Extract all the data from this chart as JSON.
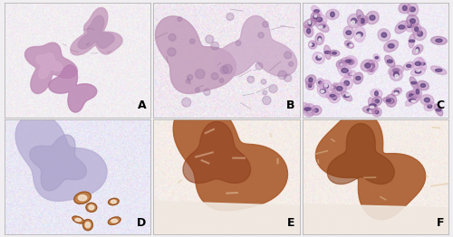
{
  "figsize": [
    5.0,
    2.62
  ],
  "dpi": 100,
  "nrows": 2,
  "ncols": 3,
  "labels": [
    "A",
    "B",
    "C",
    "D",
    "E",
    "F"
  ],
  "label_fontsize": 9,
  "label_color": "black",
  "border_color": "#aaaaaa",
  "border_linewidth": 0.5,
  "background_color": "#f0eef0",
  "bg_A": "#f2eef2",
  "bg_B": "#f0e8f0",
  "bg_C": "#f0ecf5",
  "bg_D": "#eae8f5",
  "bg_E": "#f5ede8",
  "bg_F": "#f5ede8",
  "tissue_A1": "#c8a0c0",
  "tissue_A2": "#c090b8",
  "tissue_A3": "#b880b0",
  "tissue_B1": "#c098b8",
  "tissue_B2": "#c8a5c5",
  "tissue_B_dot": "#9870a0",
  "tissue_C_cells": [
    "#c090c0",
    "#b880b5",
    "#d0a0d0",
    "#a870a8"
  ],
  "tissue_C_nucleus": "#604080",
  "tissue_D_main": "#b8b0d5",
  "tissue_D_inner": "#a8a0c8",
  "tissue_D_gland": "#c07838",
  "tissue_D_lumen": "#f5e8d8",
  "tissue_E_main": "#a85828",
  "tissue_E_dark": "#904020",
  "tissue_E_streak": "#e8c8a8",
  "tissue_E_pale": "#f0e8e0",
  "tissue_F_main": "#a85828",
  "tissue_F_dark": "#884018",
  "tissue_F_streak": "#e0c098",
  "tissue_F_pale": "#f0e8e0"
}
